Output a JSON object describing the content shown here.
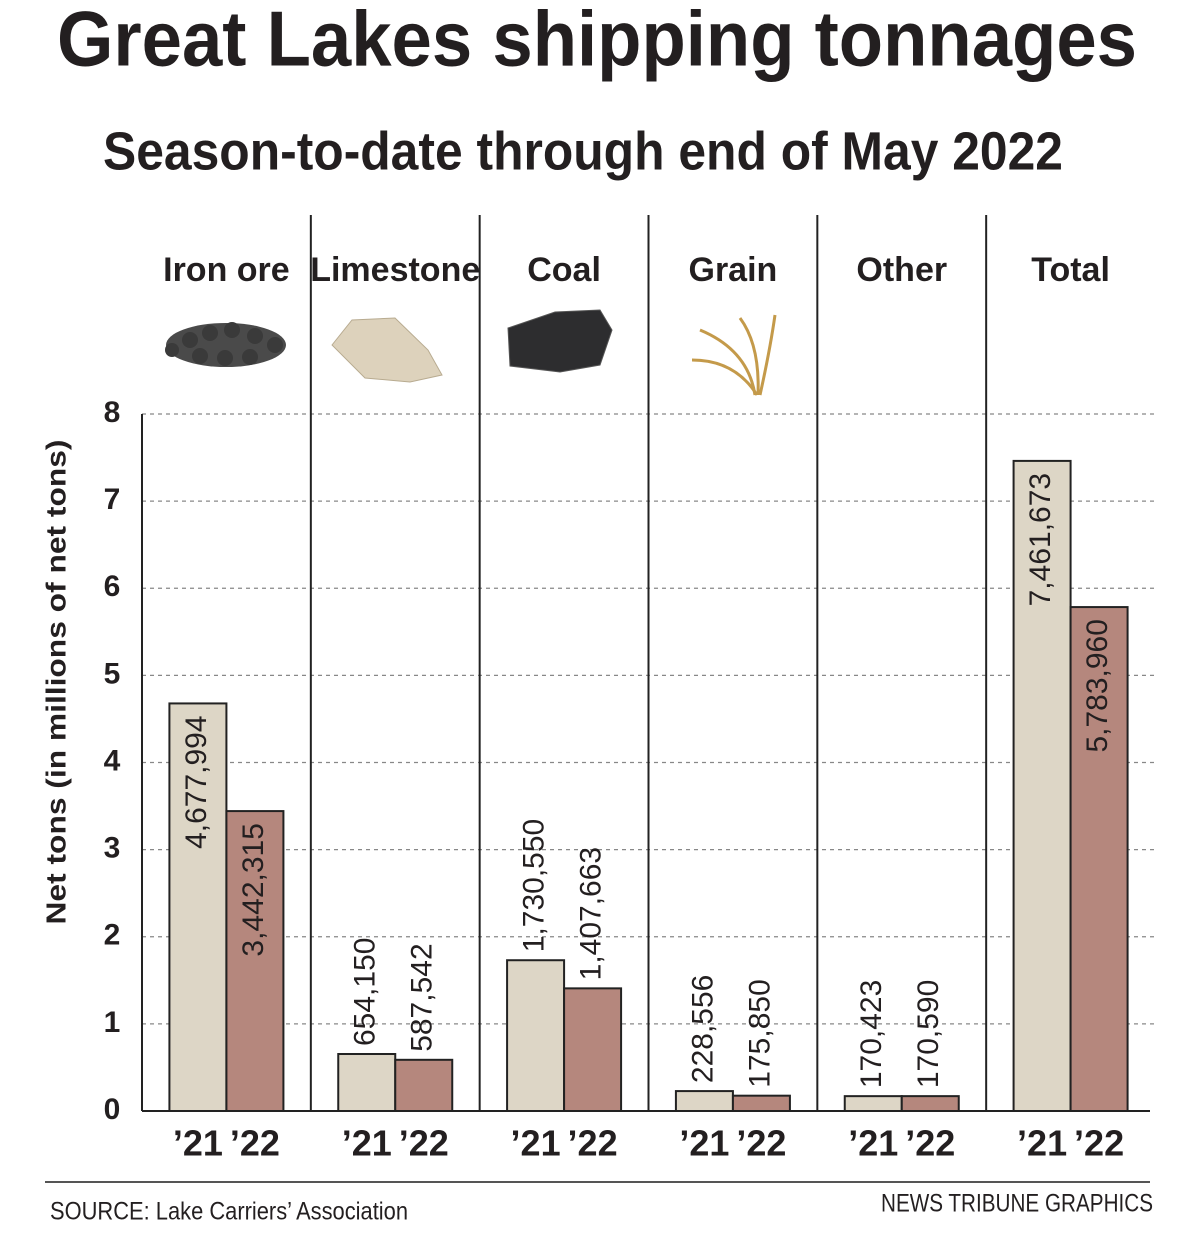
{
  "chart_data": {
    "type": "bar",
    "title": "Great Lakes shipping tonnages",
    "subtitle": "Season-to-date through end of May 2022",
    "y_label": "Net tons (in millions of net tons)",
    "categories": [
      "Iron ore",
      "Limestone",
      "Coal",
      "Grain",
      "Other",
      "Total"
    ],
    "series": [
      {
        "name": "’21",
        "color": "#ddd6c6",
        "values": [
          4.677994,
          0.65415,
          1.73055,
          0.228556,
          0.170423,
          7.461673
        ],
        "value_labels": [
          "4,677,994",
          "654,150",
          "1,730,550",
          "228,556",
          "170,423",
          "7,461,673"
        ]
      },
      {
        "name": "’22",
        "color": "#b5877d",
        "values": [
          3.442315,
          0.587542,
          1.407663,
          0.17585,
          0.17059,
          5.78396
        ],
        "value_labels": [
          "3,442,315",
          "587,542",
          "1,407,663",
          "175,850",
          "170,590",
          "5,783,960"
        ]
      }
    ],
    "ylim": [
      0,
      8
    ],
    "yticks": [
      0,
      1,
      2,
      3,
      4,
      5,
      6,
      7,
      8
    ],
    "grid": true,
    "source": "SOURCE: Lake Carriers’ Association",
    "credit": "NEWS TRIBUNE GRAPHICS"
  }
}
